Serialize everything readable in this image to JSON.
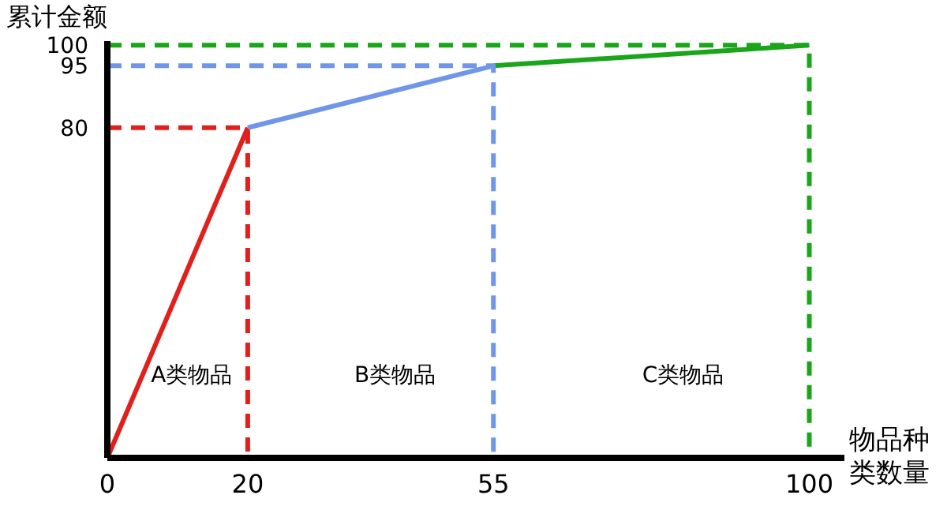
{
  "chart_data": {
    "type": "line",
    "ylabel": "累计金额",
    "xlabel": "物品种类数量",
    "xlim": [
      0,
      105
    ],
    "ylim": [
      0,
      101
    ],
    "xticks": [
      0,
      20,
      55,
      100
    ],
    "yticks": [
      80,
      95,
      100
    ],
    "grid": false,
    "marker": "none",
    "series": [
      {
        "color": "#e0201c",
        "x": [
          0,
          20
        ],
        "values": [
          0,
          80
        ],
        "line_style": "solid"
      },
      {
        "color": "#6f96e8",
        "x": [
          20,
          55
        ],
        "values": [
          80,
          95
        ],
        "line_style": "solid"
      },
      {
        "color": "#1aa51a",
        "x": [
          55,
          100
        ],
        "values": [
          95,
          100
        ],
        "line_style": "solid"
      },
      {
        "color": "#e0201c",
        "x": [
          0,
          20,
          20
        ],
        "values": [
          80,
          80,
          0
        ],
        "line_style": "dashed"
      },
      {
        "color": "#6f96e8",
        "x": [
          0,
          55,
          55
        ],
        "values": [
          95,
          95,
          0
        ],
        "line_style": "dashed"
      },
      {
        "color": "#1aa51a",
        "x": [
          0,
          100,
          100
        ],
        "values": [
          100,
          100,
          0
        ],
        "line_style": "dashed"
      }
    ],
    "annotations": [
      "A类物品",
      "B类物品",
      "C类物品"
    ]
  }
}
